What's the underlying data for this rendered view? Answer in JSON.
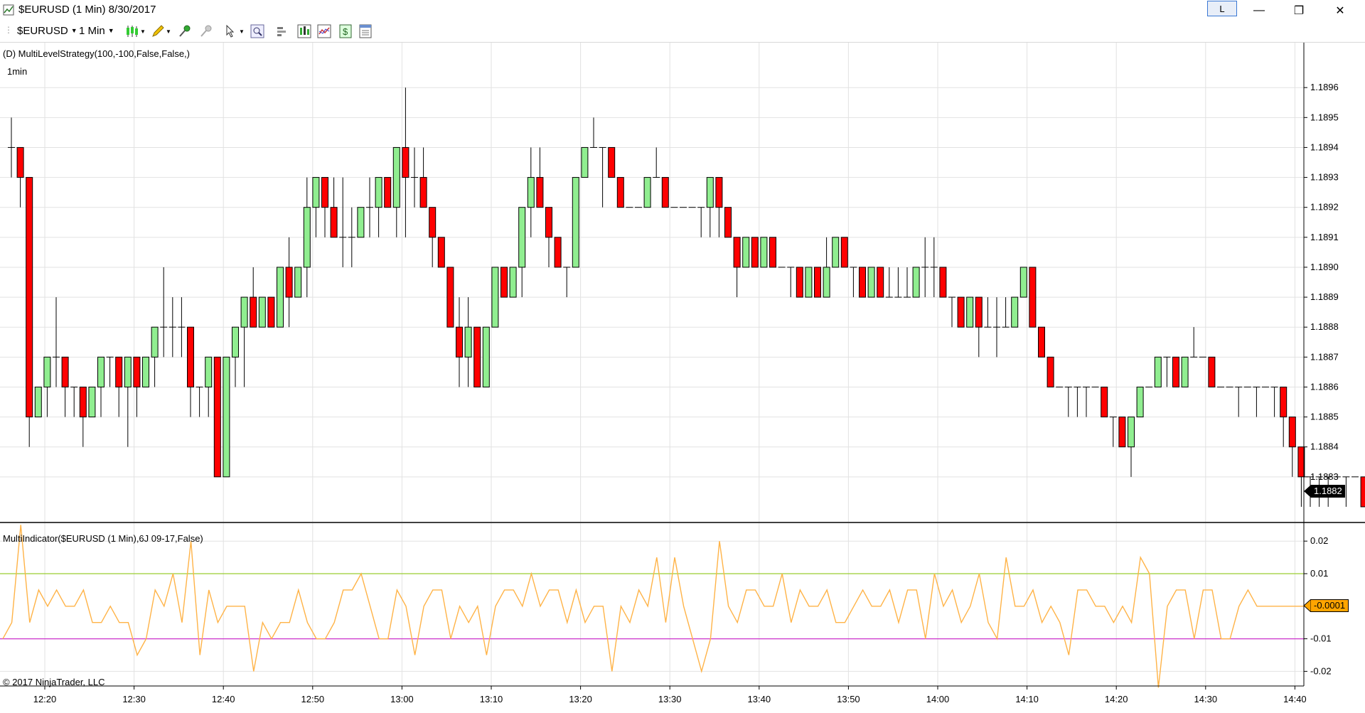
{
  "window": {
    "title": "$EURUSD (1 Min)  8/30/2017",
    "link_button": "L",
    "minimize": "—",
    "maximize": "❐",
    "close": "✕"
  },
  "toolbar": {
    "instrument": "$EURUSD",
    "interval": "1 Min",
    "icons": [
      "candlestick-icon",
      "pencil-icon",
      "pin-icon",
      "pin-disabled-icon",
      "pointer-icon",
      "zoom-icon",
      "bar-spacing-icon",
      "chart-style-icon",
      "indicator-icon",
      "strategy-icon",
      "properties-icon"
    ]
  },
  "price_panel": {
    "strategy_label": "(D) MultiLevelStrategy(100,-100,False,False,)",
    "interval_label": "1min",
    "current_price": "1.1882"
  },
  "indicator_panel": {
    "label": "MultiIndicator($EURUSD (1 Min),6J 09-17,False)",
    "current_value": "-0.0001",
    "copyright": "© 2017 NinjaTrader, LLC"
  },
  "chart_data": [
    {
      "type": "candlestick",
      "y_ticks": [
        "1.1883",
        "1.1884",
        "1.1885",
        "1.1886",
        "1.1887",
        "1.1888",
        "1.1889",
        "1.1890",
        "1.1891",
        "1.1892",
        "1.1893",
        "1.1894",
        "1.1895",
        "1.1896"
      ],
      "ylim": [
        1.18815,
        1.18975
      ],
      "x_ticks": [
        "12:20",
        "12:30",
        "12:40",
        "12:50",
        "13:00",
        "13:10",
        "13:20",
        "13:30",
        "13:40",
        "13:50",
        "14:00",
        "14:10",
        "14:20",
        "14:30",
        "14:40"
      ],
      "colors": {
        "up": "#90ee90",
        "down": "#ff0000"
      },
      "candles": [
        [
          1.1894,
          1.1895,
          1.1893,
          1.1894
        ],
        [
          1.1894,
          1.1894,
          1.1892,
          1.1893
        ],
        [
          1.1893,
          1.1893,
          1.1884,
          1.1885
        ],
        [
          1.1885,
          1.1886,
          1.1885,
          1.1886
        ],
        [
          1.1886,
          1.1887,
          1.1885,
          1.1887
        ],
        [
          1.1887,
          1.1889,
          1.1886,
          1.1887
        ],
        [
          1.1887,
          1.1887,
          1.1885,
          1.1886
        ],
        [
          1.1886,
          1.1886,
          1.1885,
          1.1886
        ],
        [
          1.1886,
          1.1886,
          1.1884,
          1.1885
        ],
        [
          1.1885,
          1.1886,
          1.1885,
          1.1886
        ],
        [
          1.1886,
          1.1887,
          1.1885,
          1.1887
        ],
        [
          1.1887,
          1.1887,
          1.1886,
          1.1887
        ],
        [
          1.1887,
          1.1887,
          1.1885,
          1.1886
        ],
        [
          1.1886,
          1.1887,
          1.1884,
          1.1887
        ],
        [
          1.1887,
          1.1887,
          1.1885,
          1.1886
        ],
        [
          1.1886,
          1.1887,
          1.1886,
          1.1887
        ],
        [
          1.1887,
          1.1888,
          1.1886,
          1.1888
        ],
        [
          1.1888,
          1.189,
          1.1887,
          1.1888
        ],
        [
          1.1888,
          1.1889,
          1.1887,
          1.1888
        ],
        [
          1.1888,
          1.1889,
          1.1887,
          1.1888
        ],
        [
          1.1888,
          1.1888,
          1.1885,
          1.1886
        ],
        [
          1.1886,
          1.1886,
          1.1885,
          1.1886
        ],
        [
          1.1886,
          1.1887,
          1.1885,
          1.1887
        ],
        [
          1.1887,
          1.1887,
          1.1883,
          1.1883
        ],
        [
          1.1883,
          1.1887,
          1.1883,
          1.1887
        ],
        [
          1.1887,
          1.1888,
          1.1886,
          1.1888
        ],
        [
          1.1888,
          1.1889,
          1.1886,
          1.1889
        ],
        [
          1.1889,
          1.189,
          1.1888,
          1.1888
        ],
        [
          1.1888,
          1.1889,
          1.1888,
          1.1889
        ],
        [
          1.1889,
          1.1889,
          1.1888,
          1.1888
        ],
        [
          1.1888,
          1.189,
          1.1888,
          1.189
        ],
        [
          1.189,
          1.1891,
          1.1888,
          1.1889
        ],
        [
          1.1889,
          1.189,
          1.1889,
          1.189
        ],
        [
          1.189,
          1.1893,
          1.1889,
          1.1892
        ],
        [
          1.1892,
          1.1893,
          1.1891,
          1.1893
        ],
        [
          1.1893,
          1.1893,
          1.1891,
          1.1892
        ],
        [
          1.1892,
          1.1893,
          1.1891,
          1.1891
        ],
        [
          1.1891,
          1.1893,
          1.189,
          1.1891
        ],
        [
          1.1891,
          1.1892,
          1.189,
          1.1891
        ],
        [
          1.1891,
          1.1892,
          1.1891,
          1.1892
        ],
        [
          1.1892,
          1.1893,
          1.1891,
          1.1892
        ],
        [
          1.1892,
          1.1893,
          1.1891,
          1.1893
        ],
        [
          1.1893,
          1.1893,
          1.1892,
          1.1892
        ],
        [
          1.1892,
          1.1894,
          1.1891,
          1.1894
        ],
        [
          1.1894,
          1.1896,
          1.1891,
          1.1893
        ],
        [
          1.1893,
          1.1894,
          1.1892,
          1.1893
        ],
        [
          1.1893,
          1.1894,
          1.1892,
          1.1892
        ],
        [
          1.1892,
          1.1892,
          1.189,
          1.1891
        ],
        [
          1.1891,
          1.1891,
          1.189,
          1.189
        ],
        [
          1.189,
          1.189,
          1.1888,
          1.1888
        ],
        [
          1.1888,
          1.1889,
          1.1886,
          1.1887
        ],
        [
          1.1887,
          1.1889,
          1.1886,
          1.1888
        ],
        [
          1.1888,
          1.1888,
          1.1886,
          1.1886
        ],
        [
          1.1886,
          1.1888,
          1.1886,
          1.1888
        ],
        [
          1.1888,
          1.189,
          1.1888,
          1.189
        ],
        [
          1.189,
          1.189,
          1.1889,
          1.1889
        ],
        [
          1.1889,
          1.189,
          1.1889,
          1.189
        ],
        [
          1.189,
          1.1892,
          1.1889,
          1.1892
        ],
        [
          1.1892,
          1.1894,
          1.1891,
          1.1893
        ],
        [
          1.1893,
          1.1894,
          1.1892,
          1.1892
        ],
        [
          1.1892,
          1.1892,
          1.189,
          1.1891
        ],
        [
          1.1891,
          1.1891,
          1.189,
          1.189
        ],
        [
          1.189,
          1.189,
          1.1889,
          1.189
        ],
        [
          1.189,
          1.1893,
          1.189,
          1.1893
        ],
        [
          1.1893,
          1.1894,
          1.1893,
          1.1894
        ],
        [
          1.1894,
          1.1895,
          1.1894,
          1.1894
        ],
        [
          1.1894,
          1.1894,
          1.1892,
          1.1894
        ],
        [
          1.1894,
          1.1894,
          1.1893,
          1.1893
        ],
        [
          1.1893,
          1.1893,
          1.1892,
          1.1892
        ],
        [
          1.1892,
          1.1892,
          1.1892,
          1.1892
        ],
        [
          1.1892,
          1.1892,
          1.1892,
          1.1892
        ],
        [
          1.1892,
          1.1893,
          1.1892,
          1.1893
        ],
        [
          1.1893,
          1.1894,
          1.1893,
          1.1893
        ],
        [
          1.1893,
          1.1893,
          1.1892,
          1.1892
        ],
        [
          1.1892,
          1.1892,
          1.1892,
          1.1892
        ],
        [
          1.1892,
          1.1892,
          1.1892,
          1.1892
        ],
        [
          1.1892,
          1.1892,
          1.1892,
          1.1892
        ],
        [
          1.1892,
          1.1892,
          1.1891,
          1.1892
        ],
        [
          1.1892,
          1.1893,
          1.1891,
          1.1893
        ],
        [
          1.1893,
          1.1893,
          1.1891,
          1.1892
        ],
        [
          1.1892,
          1.1892,
          1.1891,
          1.1891
        ],
        [
          1.1891,
          1.1891,
          1.1889,
          1.189
        ],
        [
          1.189,
          1.1891,
          1.189,
          1.1891
        ],
        [
          1.1891,
          1.1891,
          1.189,
          1.189
        ],
        [
          1.189,
          1.1891,
          1.189,
          1.1891
        ],
        [
          1.1891,
          1.1891,
          1.189,
          1.189
        ],
        [
          1.189,
          1.189,
          1.189,
          1.189
        ],
        [
          1.189,
          1.189,
          1.1889,
          1.189
        ],
        [
          1.189,
          1.189,
          1.1889,
          1.1889
        ],
        [
          1.1889,
          1.189,
          1.1889,
          1.189
        ],
        [
          1.189,
          1.189,
          1.1889,
          1.1889
        ],
        [
          1.1889,
          1.1891,
          1.1889,
          1.189
        ],
        [
          1.189,
          1.1891,
          1.189,
          1.1891
        ],
        [
          1.1891,
          1.1891,
          1.189,
          1.189
        ],
        [
          1.189,
          1.189,
          1.1889,
          1.189
        ],
        [
          1.189,
          1.189,
          1.1889,
          1.1889
        ],
        [
          1.1889,
          1.189,
          1.1889,
          1.189
        ],
        [
          1.189,
          1.189,
          1.1889,
          1.1889
        ],
        [
          1.1889,
          1.189,
          1.1889,
          1.1889
        ],
        [
          1.1889,
          1.189,
          1.1889,
          1.1889
        ],
        [
          1.1889,
          1.189,
          1.1889,
          1.1889
        ],
        [
          1.1889,
          1.189,
          1.1889,
          1.189
        ],
        [
          1.189,
          1.1891,
          1.1889,
          1.189
        ],
        [
          1.189,
          1.1891,
          1.1889,
          1.189
        ],
        [
          1.189,
          1.189,
          1.1889,
          1.1889
        ],
        [
          1.1889,
          1.1889,
          1.1888,
          1.1889
        ],
        [
          1.1889,
          1.1889,
          1.1888,
          1.1888
        ],
        [
          1.1888,
          1.1889,
          1.1888,
          1.1889
        ],
        [
          1.1889,
          1.1889,
          1.1887,
          1.1888
        ],
        [
          1.1888,
          1.1889,
          1.1888,
          1.1888
        ],
        [
          1.1888,
          1.1889,
          1.1887,
          1.1888
        ],
        [
          1.1888,
          1.1889,
          1.1888,
          1.1888
        ],
        [
          1.1888,
          1.1889,
          1.1888,
          1.1889
        ],
        [
          1.1889,
          1.189,
          1.1889,
          1.189
        ],
        [
          1.189,
          1.189,
          1.1888,
          1.1888
        ],
        [
          1.1888,
          1.1888,
          1.1887,
          1.1887
        ],
        [
          1.1887,
          1.1887,
          1.1886,
          1.1886
        ],
        [
          1.1886,
          1.1886,
          1.1886,
          1.1886
        ],
        [
          1.1886,
          1.1886,
          1.1885,
          1.1886
        ],
        [
          1.1886,
          1.1886,
          1.1885,
          1.1886
        ],
        [
          1.1886,
          1.1886,
          1.1885,
          1.1886
        ],
        [
          1.1886,
          1.1886,
          1.1886,
          1.1886
        ],
        [
          1.1886,
          1.1886,
          1.1885,
          1.1885
        ],
        [
          1.1885,
          1.1885,
          1.1884,
          1.1885
        ],
        [
          1.1885,
          1.1885,
          1.1884,
          1.1884
        ],
        [
          1.1884,
          1.1885,
          1.1883,
          1.1885
        ],
        [
          1.1885,
          1.1886,
          1.1885,
          1.1886
        ],
        [
          1.1886,
          1.1886,
          1.1886,
          1.1886
        ],
        [
          1.1886,
          1.1887,
          1.1886,
          1.1887
        ],
        [
          1.1887,
          1.1887,
          1.1886,
          1.1887
        ],
        [
          1.1887,
          1.1887,
          1.1886,
          1.1886
        ],
        [
          1.1886,
          1.1887,
          1.1886,
          1.1887
        ],
        [
          1.1887,
          1.1888,
          1.1887,
          1.1887
        ],
        [
          1.1887,
          1.1887,
          1.1887,
          1.1887
        ],
        [
          1.1887,
          1.1887,
          1.1886,
          1.1886
        ],
        [
          1.1886,
          1.1886,
          1.1886,
          1.1886
        ],
        [
          1.1886,
          1.1886,
          1.1886,
          1.1886
        ],
        [
          1.1886,
          1.1886,
          1.1885,
          1.1886
        ],
        [
          1.1886,
          1.1886,
          1.1886,
          1.1886
        ],
        [
          1.1886,
          1.1886,
          1.1885,
          1.1886
        ],
        [
          1.1886,
          1.1886,
          1.1886,
          1.1886
        ],
        [
          1.1886,
          1.1886,
          1.1885,
          1.1886
        ],
        [
          1.1886,
          1.1886,
          1.1884,
          1.1885
        ],
        [
          1.1885,
          1.1885,
          1.1883,
          1.1884
        ],
        [
          1.1884,
          1.1884,
          1.1882,
          1.1883
        ],
        [
          1.1883,
          1.1883,
          1.1882,
          1.1883
        ],
        [
          1.1883,
          1.1883,
          1.1882,
          1.1883
        ],
        [
          1.1883,
          1.1883,
          1.1882,
          1.1883
        ],
        [
          1.1883,
          1.1883,
          1.1883,
          1.1883
        ],
        [
          1.1883,
          1.1883,
          1.1882,
          1.1883
        ],
        [
          1.1883,
          1.1883,
          1.1883,
          1.1883
        ],
        [
          1.1883,
          1.1883,
          1.1882,
          1.1882
        ],
        [
          1.1882,
          1.1883,
          1.1882,
          1.1883
        ],
        [
          1.1883,
          1.1883,
          1.1882,
          1.1882
        ],
        [
          1.1882,
          1.1883,
          1.1882,
          1.1883
        ],
        [
          1.1883,
          1.1883,
          1.1882,
          1.1882
        ],
        [
          1.1882,
          1.1883,
          1.1882,
          1.1882
        ]
      ]
    },
    {
      "type": "line",
      "y_ticks": [
        "0.02",
        "0.01",
        "-0.01",
        "-0.02"
      ],
      "ylim": [
        -0.0245,
        0.0255
      ],
      "levels": [
        {
          "value": 0.01,
          "color": "#9acd32"
        },
        {
          "value": -0.01,
          "color": "#cc33cc"
        }
      ],
      "line_color": "#ffb347",
      "values": [
        -0.01,
        -0.005,
        0.025,
        -0.005,
        0.005,
        0.0,
        0.005,
        0.0,
        0.0,
        0.005,
        -0.005,
        -0.005,
        0.0,
        -0.005,
        -0.005,
        -0.015,
        -0.01,
        0.005,
        0.0,
        0.01,
        -0.005,
        0.02,
        -0.015,
        0.005,
        -0.005,
        0.0,
        0.0,
        0.0,
        -0.02,
        -0.005,
        -0.01,
        -0.005,
        -0.005,
        0.005,
        -0.005,
        -0.01,
        -0.01,
        -0.005,
        0.005,
        0.005,
        0.01,
        0.0,
        -0.01,
        -0.01,
        0.005,
        0.0,
        -0.015,
        0.0,
        0.005,
        0.005,
        -0.01,
        0.0,
        -0.005,
        0.0,
        -0.015,
        0.0,
        0.005,
        0.005,
        0.0,
        0.01,
        0.0,
        0.005,
        0.005,
        -0.005,
        0.005,
        -0.005,
        0.0,
        0.0,
        -0.02,
        0.0,
        -0.005,
        0.005,
        0.0,
        0.015,
        -0.005,
        0.015,
        0.0,
        -0.01,
        -0.02,
        -0.01,
        0.02,
        0.0,
        -0.005,
        0.005,
        0.005,
        0.0,
        0.0,
        0.01,
        -0.005,
        0.005,
        0.0,
        0.0,
        0.005,
        -0.005,
        -0.005,
        0.0,
        0.005,
        0.0,
        0.0,
        0.005,
        -0.005,
        0.005,
        0.005,
        -0.01,
        0.01,
        0.0,
        0.005,
        -0.005,
        0.0,
        0.01,
        -0.005,
        -0.01,
        0.015,
        0.0,
        0.0,
        0.005,
        -0.005,
        0.0,
        -0.005,
        -0.015,
        0.005,
        0.005,
        0.0,
        0.0,
        -0.005,
        0.0,
        -0.005,
        0.015,
        0.01,
        -0.025,
        0.0,
        0.005,
        0.005,
        -0.01,
        0.005,
        0.005,
        -0.01,
        -0.01,
        0.0,
        0.005,
        0.0,
        0.0,
        0.0,
        0.0,
        0.0,
        0.0,
        0.0,
        0.0
      ]
    }
  ]
}
